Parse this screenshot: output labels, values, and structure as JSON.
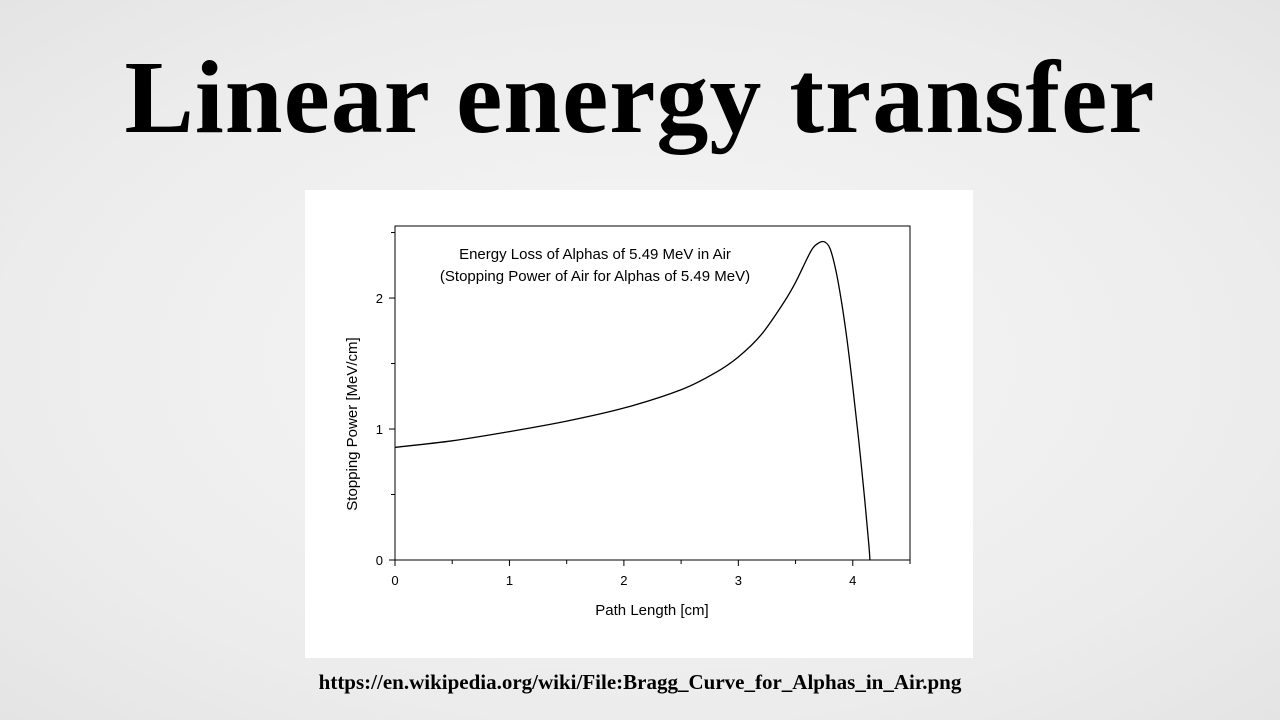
{
  "slide": {
    "title": "Linear energy transfer",
    "source_url": "https://en.wikipedia.org/wiki/File:Bragg_Curve_for_Alphas_in_Air.png"
  },
  "chart_data": {
    "type": "line",
    "title": "Energy Loss of Alphas of 5.49 MeV in Air",
    "subtitle": "(Stopping Power of Air for Alphas of 5.49 MeV)",
    "xlabel": "Path Length [cm]",
    "ylabel": "Stopping Power [MeV/cm]",
    "xlim": [
      0,
      4.5
    ],
    "ylim": [
      0,
      2.55
    ],
    "xticks": [
      0,
      1,
      2,
      3,
      4
    ],
    "yticks": [
      0,
      1,
      2
    ],
    "grid": false,
    "series": [
      {
        "x": [
          0,
          0.5,
          1.0,
          1.5,
          2.0,
          2.5,
          2.8,
          3.0,
          3.2,
          3.4,
          3.5,
          3.6,
          3.65,
          3.7,
          3.75,
          3.8,
          3.85,
          3.9,
          3.95,
          4.0,
          4.05,
          4.1,
          4.14,
          4.15
        ],
        "y": [
          0.86,
          0.91,
          0.98,
          1.06,
          1.16,
          1.3,
          1.43,
          1.55,
          1.72,
          1.97,
          2.12,
          2.3,
          2.38,
          2.42,
          2.43,
          2.38,
          2.22,
          1.98,
          1.68,
          1.32,
          0.93,
          0.5,
          0.12,
          0.0
        ]
      }
    ]
  }
}
